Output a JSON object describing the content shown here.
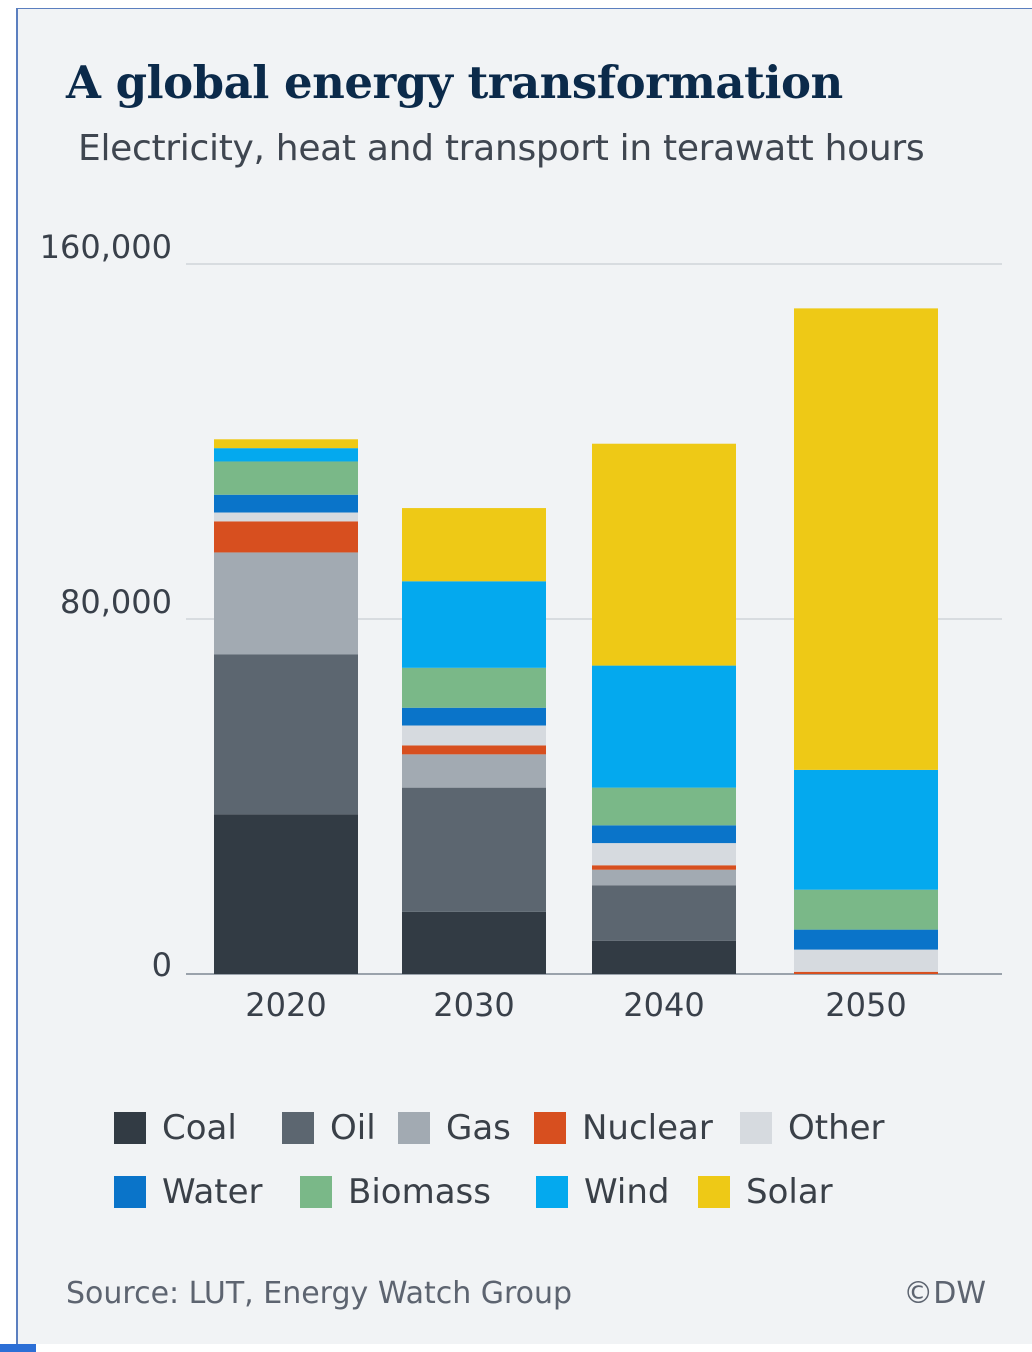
{
  "chart_data": {
    "type": "bar",
    "stacked": true,
    "title": "A global energy transformation",
    "subtitle": "Electricity, heat and transport in terawatt hours",
    "categories": [
      "2020",
      "2030",
      "2040",
      "2050"
    ],
    "ylim": [
      0,
      160000
    ],
    "yticks": [
      "0",
      "80,000",
      "160,000"
    ],
    "ytick_values": [
      0,
      80000,
      160000
    ],
    "grid": true,
    "legend_position": "bottom",
    "series": [
      {
        "name": "Coal",
        "color": "#323b44",
        "values": [
          36000,
          14000,
          7500,
          0
        ]
      },
      {
        "name": "Oil",
        "color": "#5c6670",
        "values": [
          36000,
          28000,
          12500,
          0
        ]
      },
      {
        "name": "Gas",
        "color": "#a2aab2",
        "values": [
          23000,
          7500,
          3500,
          0
        ]
      },
      {
        "name": "Nuclear",
        "color": "#d74f1f",
        "values": [
          7000,
          2000,
          1000,
          500
        ]
      },
      {
        "name": "Other",
        "color": "#d6dadf",
        "values": [
          2000,
          4500,
          5000,
          5000
        ]
      },
      {
        "name": "Water",
        "color": "#0a74c9",
        "values": [
          4000,
          4000,
          4000,
          4500
        ]
      },
      {
        "name": "Biomass",
        "color": "#7ab888",
        "values": [
          7500,
          9000,
          8500,
          9000
        ]
      },
      {
        "name": "Wind",
        "color": "#04a9ee",
        "values": [
          3000,
          19500,
          27500,
          27000
        ]
      },
      {
        "name": "Solar",
        "color": "#eec916",
        "values": [
          2000,
          16500,
          50000,
          104000
        ]
      }
    ]
  },
  "footer": {
    "source": "Source: LUT, Energy Watch Group",
    "credit": "©DW"
  }
}
